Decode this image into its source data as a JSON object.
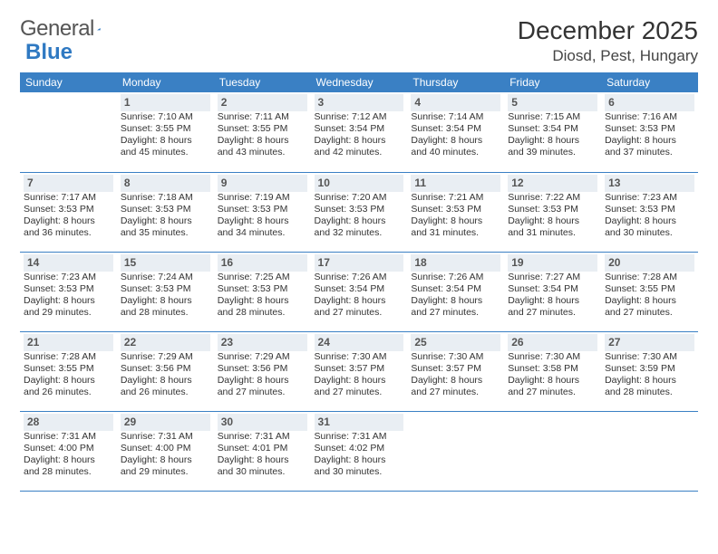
{
  "logo": {
    "name": "General",
    "accent": "Blue"
  },
  "title": "December 2025",
  "location": "Diosd, Pest, Hungary",
  "colors": {
    "header_bg": "#3a80c4",
    "header_text": "#ffffff",
    "daynum_bg": "#e9eef3",
    "rule": "#3a80c4",
    "logo_accent": "#2f79c2",
    "text": "#333333"
  },
  "day_headers": [
    "Sunday",
    "Monday",
    "Tuesday",
    "Wednesday",
    "Thursday",
    "Friday",
    "Saturday"
  ],
  "weeks": [
    [
      {
        "n": "",
        "sr": "",
        "ss": "",
        "dl": ""
      },
      {
        "n": "1",
        "sr": "Sunrise: 7:10 AM",
        "ss": "Sunset: 3:55 PM",
        "dl": "Daylight: 8 hours and 45 minutes."
      },
      {
        "n": "2",
        "sr": "Sunrise: 7:11 AM",
        "ss": "Sunset: 3:55 PM",
        "dl": "Daylight: 8 hours and 43 minutes."
      },
      {
        "n": "3",
        "sr": "Sunrise: 7:12 AM",
        "ss": "Sunset: 3:54 PM",
        "dl": "Daylight: 8 hours and 42 minutes."
      },
      {
        "n": "4",
        "sr": "Sunrise: 7:14 AM",
        "ss": "Sunset: 3:54 PM",
        "dl": "Daylight: 8 hours and 40 minutes."
      },
      {
        "n": "5",
        "sr": "Sunrise: 7:15 AM",
        "ss": "Sunset: 3:54 PM",
        "dl": "Daylight: 8 hours and 39 minutes."
      },
      {
        "n": "6",
        "sr": "Sunrise: 7:16 AM",
        "ss": "Sunset: 3:53 PM",
        "dl": "Daylight: 8 hours and 37 minutes."
      }
    ],
    [
      {
        "n": "7",
        "sr": "Sunrise: 7:17 AM",
        "ss": "Sunset: 3:53 PM",
        "dl": "Daylight: 8 hours and 36 minutes."
      },
      {
        "n": "8",
        "sr": "Sunrise: 7:18 AM",
        "ss": "Sunset: 3:53 PM",
        "dl": "Daylight: 8 hours and 35 minutes."
      },
      {
        "n": "9",
        "sr": "Sunrise: 7:19 AM",
        "ss": "Sunset: 3:53 PM",
        "dl": "Daylight: 8 hours and 34 minutes."
      },
      {
        "n": "10",
        "sr": "Sunrise: 7:20 AM",
        "ss": "Sunset: 3:53 PM",
        "dl": "Daylight: 8 hours and 32 minutes."
      },
      {
        "n": "11",
        "sr": "Sunrise: 7:21 AM",
        "ss": "Sunset: 3:53 PM",
        "dl": "Daylight: 8 hours and 31 minutes."
      },
      {
        "n": "12",
        "sr": "Sunrise: 7:22 AM",
        "ss": "Sunset: 3:53 PM",
        "dl": "Daylight: 8 hours and 31 minutes."
      },
      {
        "n": "13",
        "sr": "Sunrise: 7:23 AM",
        "ss": "Sunset: 3:53 PM",
        "dl": "Daylight: 8 hours and 30 minutes."
      }
    ],
    [
      {
        "n": "14",
        "sr": "Sunrise: 7:23 AM",
        "ss": "Sunset: 3:53 PM",
        "dl": "Daylight: 8 hours and 29 minutes."
      },
      {
        "n": "15",
        "sr": "Sunrise: 7:24 AM",
        "ss": "Sunset: 3:53 PM",
        "dl": "Daylight: 8 hours and 28 minutes."
      },
      {
        "n": "16",
        "sr": "Sunrise: 7:25 AM",
        "ss": "Sunset: 3:53 PM",
        "dl": "Daylight: 8 hours and 28 minutes."
      },
      {
        "n": "17",
        "sr": "Sunrise: 7:26 AM",
        "ss": "Sunset: 3:54 PM",
        "dl": "Daylight: 8 hours and 27 minutes."
      },
      {
        "n": "18",
        "sr": "Sunrise: 7:26 AM",
        "ss": "Sunset: 3:54 PM",
        "dl": "Daylight: 8 hours and 27 minutes."
      },
      {
        "n": "19",
        "sr": "Sunrise: 7:27 AM",
        "ss": "Sunset: 3:54 PM",
        "dl": "Daylight: 8 hours and 27 minutes."
      },
      {
        "n": "20",
        "sr": "Sunrise: 7:28 AM",
        "ss": "Sunset: 3:55 PM",
        "dl": "Daylight: 8 hours and 27 minutes."
      }
    ],
    [
      {
        "n": "21",
        "sr": "Sunrise: 7:28 AM",
        "ss": "Sunset: 3:55 PM",
        "dl": "Daylight: 8 hours and 26 minutes."
      },
      {
        "n": "22",
        "sr": "Sunrise: 7:29 AM",
        "ss": "Sunset: 3:56 PM",
        "dl": "Daylight: 8 hours and 26 minutes."
      },
      {
        "n": "23",
        "sr": "Sunrise: 7:29 AM",
        "ss": "Sunset: 3:56 PM",
        "dl": "Daylight: 8 hours and 27 minutes."
      },
      {
        "n": "24",
        "sr": "Sunrise: 7:30 AM",
        "ss": "Sunset: 3:57 PM",
        "dl": "Daylight: 8 hours and 27 minutes."
      },
      {
        "n": "25",
        "sr": "Sunrise: 7:30 AM",
        "ss": "Sunset: 3:57 PM",
        "dl": "Daylight: 8 hours and 27 minutes."
      },
      {
        "n": "26",
        "sr": "Sunrise: 7:30 AM",
        "ss": "Sunset: 3:58 PM",
        "dl": "Daylight: 8 hours and 27 minutes."
      },
      {
        "n": "27",
        "sr": "Sunrise: 7:30 AM",
        "ss": "Sunset: 3:59 PM",
        "dl": "Daylight: 8 hours and 28 minutes."
      }
    ],
    [
      {
        "n": "28",
        "sr": "Sunrise: 7:31 AM",
        "ss": "Sunset: 4:00 PM",
        "dl": "Daylight: 8 hours and 28 minutes."
      },
      {
        "n": "29",
        "sr": "Sunrise: 7:31 AM",
        "ss": "Sunset: 4:00 PM",
        "dl": "Daylight: 8 hours and 29 minutes."
      },
      {
        "n": "30",
        "sr": "Sunrise: 7:31 AM",
        "ss": "Sunset: 4:01 PM",
        "dl": "Daylight: 8 hours and 30 minutes."
      },
      {
        "n": "31",
        "sr": "Sunrise: 7:31 AM",
        "ss": "Sunset: 4:02 PM",
        "dl": "Daylight: 8 hours and 30 minutes."
      },
      {
        "n": "",
        "sr": "",
        "ss": "",
        "dl": ""
      },
      {
        "n": "",
        "sr": "",
        "ss": "",
        "dl": ""
      },
      {
        "n": "",
        "sr": "",
        "ss": "",
        "dl": ""
      }
    ]
  ]
}
